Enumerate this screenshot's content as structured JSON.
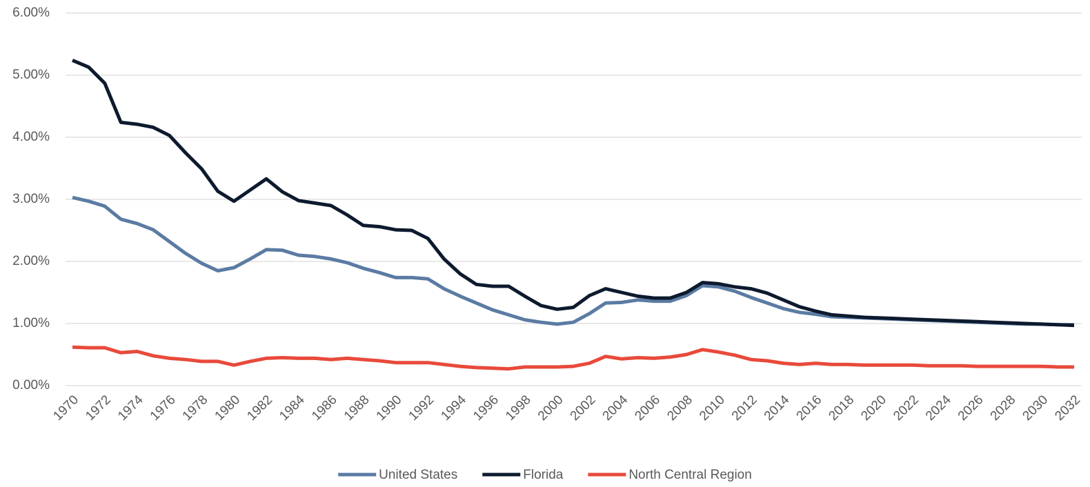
{
  "chart_data": {
    "type": "line",
    "x": [
      1970,
      1971,
      1972,
      1973,
      1974,
      1975,
      1976,
      1977,
      1978,
      1979,
      1980,
      1981,
      1982,
      1983,
      1984,
      1985,
      1986,
      1987,
      1988,
      1989,
      1990,
      1991,
      1992,
      1993,
      1994,
      1995,
      1996,
      1997,
      1998,
      1999,
      2000,
      2001,
      2002,
      2003,
      2004,
      2005,
      2006,
      2007,
      2008,
      2009,
      2010,
      2011,
      2012,
      2013,
      2014,
      2015,
      2016,
      2017,
      2018,
      2019,
      2020,
      2021,
      2022,
      2023,
      2024,
      2025,
      2026,
      2027,
      2028,
      2029,
      2030,
      2031,
      2032
    ],
    "xlim": [
      1970,
      2032
    ],
    "xticks": [
      1970,
      1972,
      1974,
      1976,
      1978,
      1980,
      1982,
      1984,
      1986,
      1988,
      1990,
      1992,
      1994,
      1996,
      1998,
      2000,
      2002,
      2004,
      2006,
      2008,
      2010,
      2012,
      2014,
      2016,
      2018,
      2020,
      2022,
      2024,
      2026,
      2028,
      2030,
      2032
    ],
    "ylim": [
      0,
      6
    ],
    "yticks": [
      {
        "value": 0,
        "label": "0.00%"
      },
      {
        "value": 1,
        "label": "1.00%"
      },
      {
        "value": 2,
        "label": "2.00%"
      },
      {
        "value": 3,
        "label": "3.00%"
      },
      {
        "value": 4,
        "label": "4.00%"
      },
      {
        "value": 5,
        "label": "5.00%"
      },
      {
        "value": 6,
        "label": "6.00%"
      }
    ],
    "grid": true,
    "legend": "bottom",
    "series": [
      {
        "name": "United States",
        "color": "#5b7ba3",
        "values": [
          3.03,
          2.97,
          2.89,
          2.68,
          2.61,
          2.51,
          2.32,
          2.13,
          1.97,
          1.85,
          1.9,
          2.04,
          2.19,
          2.18,
          2.1,
          2.08,
          2.04,
          1.98,
          1.89,
          1.82,
          1.74,
          1.74,
          1.72,
          1.56,
          1.44,
          1.33,
          1.22,
          1.14,
          1.06,
          1.02,
          0.99,
          1.02,
          1.16,
          1.33,
          1.34,
          1.38,
          1.36,
          1.36,
          1.45,
          1.61,
          1.59,
          1.52,
          1.42,
          1.33,
          1.24,
          1.18,
          1.15,
          1.11,
          1.1,
          1.09,
          1.08,
          1.07,
          1.06,
          1.05,
          1.04,
          1.03,
          1.02,
          1.01,
          1.0,
          0.99,
          0.99,
          0.98,
          0.98
        ]
      },
      {
        "name": "Florida",
        "color": "#0d1a2e",
        "values": [
          5.24,
          5.13,
          4.87,
          4.24,
          4.21,
          4.16,
          4.03,
          3.75,
          3.49,
          3.13,
          2.97,
          3.15,
          3.33,
          3.12,
          2.98,
          2.94,
          2.9,
          2.75,
          2.58,
          2.56,
          2.51,
          2.5,
          2.37,
          2.04,
          1.8,
          1.63,
          1.6,
          1.6,
          1.44,
          1.29,
          1.23,
          1.26,
          1.45,
          1.56,
          1.5,
          1.44,
          1.41,
          1.41,
          1.5,
          1.66,
          1.64,
          1.59,
          1.56,
          1.49,
          1.38,
          1.27,
          1.2,
          1.14,
          1.12,
          1.1,
          1.09,
          1.08,
          1.07,
          1.06,
          1.05,
          1.04,
          1.03,
          1.02,
          1.01,
          1.0,
          0.99,
          0.98,
          0.97
        ]
      },
      {
        "name": "North Central Region",
        "color": "#e84a3b",
        "values": [
          0.62,
          0.61,
          0.61,
          0.53,
          0.55,
          0.48,
          0.44,
          0.42,
          0.39,
          0.39,
          0.33,
          0.39,
          0.44,
          0.45,
          0.44,
          0.44,
          0.42,
          0.44,
          0.42,
          0.4,
          0.37,
          0.37,
          0.37,
          0.34,
          0.31,
          0.29,
          0.28,
          0.27,
          0.3,
          0.3,
          0.3,
          0.31,
          0.36,
          0.47,
          0.43,
          0.45,
          0.44,
          0.46,
          0.5,
          0.58,
          0.54,
          0.49,
          0.42,
          0.4,
          0.36,
          0.34,
          0.36,
          0.34,
          0.34,
          0.33,
          0.33,
          0.33,
          0.33,
          0.32,
          0.32,
          0.32,
          0.31,
          0.31,
          0.31,
          0.31,
          0.31,
          0.3,
          0.3
        ]
      }
    ]
  }
}
